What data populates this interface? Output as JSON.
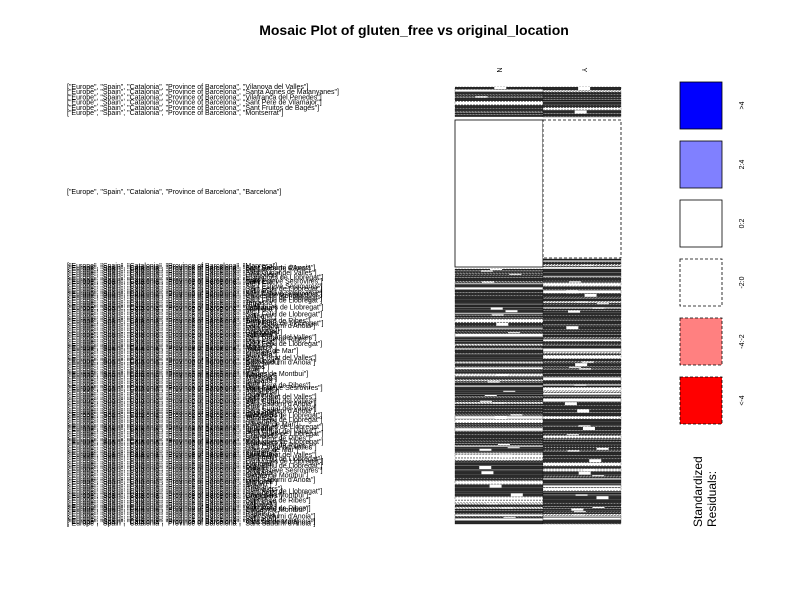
{
  "chart_data": {
    "type": "mosaic",
    "title": "Mosaic Plot of gluten_free vs original_location",
    "column_variable_levels": [
      "N",
      "Y"
    ],
    "row_labels": [
      "[\"Europe\", \"Spain\", \"Catalonia\", \"Province of Barcelona\", \"Barcelona\"]",
      "[\"Europe\", \"Spain\", \"Catalonia\", \"Province of Barcelona\", \"Vilanova del Valles\"]",
      "[\"Europe\", \"Spain\", \"Catalonia\", \"Province of Barcelona\", \"Santa Agnes de Malanyanes\"]",
      "[\"Europe\", \"Spain\", \"Catalonia\", \"Province of Barcelona\", \"Vilafranca del Penedes\"]",
      "[\"Europe\", \"Spain\", \"Catalonia\", \"Province of Barcelona\", \"Sant Pere de Vilamajor\"]",
      "[\"Europe\", \"Spain\", \"Catalonia\", \"Province of Barcelona\", \"Sant Fruitos de Bages\"]",
      "[\"Europe\", \"Spain\", \"Catalonia\", \"Province of Barcelona\", \"Montserrat\"]",
      "[\"Europe\", \"Spain\", \"Catalonia\", \"Province of Barcelona\", \"Sant Sadurni d'Anoia\"]",
      "[\"Europe\", \"Spain\", \"Catalonia\", \"Province of Barcelona\", \"Sant Esteve Sesrovires\"]",
      "[\"Europe\", \"Spain\", \"Catalonia\", \"Province of Barcelona\", \"Sant Feliu de Llobregat\"]",
      "[\"Europe\", \"Spain\", \"Catalonia\", \"Province of Barcelona\", \"Vallirana\"]",
      "[\"Europe\", \"Spain\", \"Catalonia\", \"Province of Barcelona\", \"Terrassa\"]",
      "[\"Europe\", \"Spain\", \"Catalonia\", \"Province of Barcelona\", \"Sabadell\"]",
      "[\"Europe\", \"Spain\", \"Catalonia\", \"Province of Barcelona\", \"Mataro\"]",
      "[\"Europe\", \"Spain\", \"Catalonia\", \"Province of Barcelona\", \"Badalona\"]",
      "[\"Europe\", \"Spain\", \"Catalonia\", \"Province of Barcelona\", \"Sitges\"]",
      "[\"Europe\", \"Spain\", \"Catalonia\", \"Province of Barcelona\", \"Manresa\"]",
      "[\"Europe\", \"Spain\", \"Catalonia\", \"Province of Barcelona\", \"Vic\"]",
      "[\"Europe\", \"Spain\", \"Catalonia\", \"Province of Barcelona\", \"Granollers\"]",
      "[\"Europe\", \"Spain\", \"Catalonia\", \"Province of Barcelona\", \"Igualada\"]",
      "[\"Europe\", \"Spain\", \"Catalonia\", \"Province of Barcelona\", \"Esplugues de Llobregat\"]",
      "[\"Europe\", \"Spain\", \"Catalonia\", \"Province of Barcelona\", \"Sant Cugat del Valles\"]",
      "[\"Europe\", \"Spain\", \"Catalonia\", \"Province of Barcelona\", \"Rubi\"]",
      "[\"Europe\", \"Spain\", \"Catalonia\", \"Province of Barcelona\", \"Martorell\"]",
      "[\"Europe\", \"Spain\", \"Catalonia\", \"Province of Barcelona\", \"Caldes de Montbui\"]",
      "[\"Europe\", \"Spain\", \"Catalonia\", \"Province of Barcelona\", \"Sant Pere de Ribes\"]",
      "[\"Europe\", \"Spain\", \"Catalonia\", \"Province of Barcelona\", \"Vilassar de Mar\"]"
    ],
    "legend": {
      "title": "Standardized Residuals:",
      "entries": [
        {
          "label": ">4",
          "fill": "#0000ff",
          "dashed": false
        },
        {
          "label": "2:4",
          "fill": "#8080ff",
          "dashed": false
        },
        {
          "label": "0:2",
          "fill": "#ffffff",
          "dashed": false
        },
        {
          "label": "-2:0",
          "fill": "#ffffff",
          "dashed": true
        },
        {
          "label": "-4:-2",
          "fill": "#ff8080",
          "dashed": true
        },
        {
          "label": "<-4",
          "fill": "#ff0000",
          "dashed": true
        }
      ]
    },
    "highlighted_row": {
      "label": "[\"Europe\", \"Spain\", \"Catalonia\", \"Province of Barcelona\", \"Barcelona\"]",
      "cells": {
        "N": "0:2",
        "Y": "-2:0"
      }
    }
  }
}
